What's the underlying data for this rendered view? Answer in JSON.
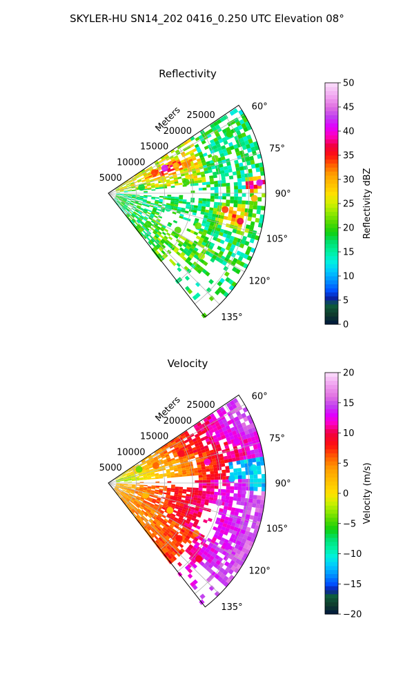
{
  "figure": {
    "suptitle": "SKYLER-HU  SN14_202  0416_0.250 UTC Elevation 08°"
  },
  "chart_data": [
    {
      "type": "heatmap",
      "title": "Reflectivity",
      "projection": "polar-sector",
      "radial_label": "Meters",
      "radial_ticks": [
        5000,
        10000,
        15000,
        20000,
        25000
      ],
      "radial_tick_labels": [
        "5000",
        "10000",
        "15000",
        "20000",
        "25000"
      ],
      "rmax": 28000,
      "angle_range_deg": [
        56,
        142
      ],
      "angle_ticks": [
        60,
        75,
        90,
        105,
        120,
        135
      ],
      "angle_tick_labels": [
        "60°",
        "75°",
        "90°",
        "105°",
        "120°",
        "135°"
      ],
      "grid": true,
      "colorbar": {
        "label": "Reflectivity dBZ",
        "range": [
          0,
          50
        ],
        "ticks": [
          0,
          5,
          10,
          15,
          20,
          25,
          30,
          35,
          40,
          45,
          50
        ],
        "tick_labels": [
          "0",
          "5",
          "10",
          "15",
          "20",
          "25",
          "30",
          "35",
          "40",
          "45",
          "50"
        ],
        "stops": [
          {
            "v": 0,
            "c": "#00163f"
          },
          {
            "v": 2,
            "c": "#0f3b2b"
          },
          {
            "v": 4,
            "c": "#0d5c3c"
          },
          {
            "v": 5.5,
            "c": "#0a1fa8"
          },
          {
            "v": 7,
            "c": "#0050ff"
          },
          {
            "v": 9,
            "c": "#0090ff"
          },
          {
            "v": 11,
            "c": "#00c8ff"
          },
          {
            "v": 13,
            "c": "#00f0e0"
          },
          {
            "v": 15,
            "c": "#00f0a0"
          },
          {
            "v": 17,
            "c": "#00e070"
          },
          {
            "v": 19,
            "c": "#10d010"
          },
          {
            "v": 21,
            "c": "#50d800"
          },
          {
            "v": 23,
            "c": "#90e800"
          },
          {
            "v": 25,
            "c": "#d0f000"
          },
          {
            "v": 27,
            "c": "#ffe000"
          },
          {
            "v": 29,
            "c": "#ffc000"
          },
          {
            "v": 31,
            "c": "#ffa000"
          },
          {
            "v": 33,
            "c": "#ff6000"
          },
          {
            "v": 35,
            "c": "#ff1010"
          },
          {
            "v": 37,
            "c": "#f00040"
          },
          {
            "v": 39,
            "c": "#ff00c0"
          },
          {
            "v": 41,
            "c": "#e000ff"
          },
          {
            "v": 43,
            "c": "#c040f0"
          },
          {
            "v": 45,
            "c": "#e070e0"
          },
          {
            "v": 47,
            "c": "#f0a0f0"
          },
          {
            "v": 50,
            "c": "#fbe0fb"
          }
        ]
      },
      "cells": [
        {
          "az": 66,
          "r": 9000,
          "dbz": 34
        },
        {
          "az": 66,
          "r": 11000,
          "dbz": 42
        },
        {
          "az": 68,
          "r": 13000,
          "dbz": 30
        },
        {
          "az": 70,
          "r": 15000,
          "dbz": 32
        },
        {
          "az": 72,
          "r": 20000,
          "dbz": 22
        },
        {
          "az": 64,
          "r": 24000,
          "dbz": 20
        },
        {
          "az": 76,
          "r": 10000,
          "dbz": 26
        },
        {
          "az": 80,
          "r": 6000,
          "dbz": 18
        },
        {
          "az": 82,
          "r": 14000,
          "dbz": 20
        },
        {
          "az": 86,
          "r": 27000,
          "dbz": 42
        },
        {
          "az": 92,
          "r": 26000,
          "dbz": 30
        },
        {
          "az": 98,
          "r": 21000,
          "dbz": 34
        },
        {
          "az": 102,
          "r": 24000,
          "dbz": 37
        },
        {
          "az": 104,
          "r": 11000,
          "dbz": 16
        },
        {
          "az": 110,
          "r": 17000,
          "dbz": 22
        },
        {
          "az": 118,
          "r": 14000,
          "dbz": 21
        },
        {
          "az": 124,
          "r": 20000,
          "dbz": 24
        },
        {
          "az": 128,
          "r": 9000,
          "dbz": 20
        }
      ]
    },
    {
      "type": "heatmap",
      "title": "Velocity",
      "projection": "polar-sector",
      "radial_label": "Meters",
      "radial_ticks": [
        5000,
        10000,
        15000,
        20000,
        25000
      ],
      "radial_tick_labels": [
        "5000",
        "10000",
        "15000",
        "20000",
        "25000"
      ],
      "rmax": 28000,
      "angle_range_deg": [
        56,
        142
      ],
      "angle_ticks": [
        60,
        75,
        90,
        105,
        120,
        135
      ],
      "angle_tick_labels": [
        "60°",
        "75°",
        "90°",
        "105°",
        "120°",
        "135°"
      ],
      "grid": true,
      "colorbar": {
        "label": "Velocity (m/s)",
        "range": [
          -20,
          20
        ],
        "ticks": [
          -20,
          -15,
          -10,
          -5,
          0,
          5,
          10,
          15,
          20
        ],
        "tick_labels": [
          "−20",
          "−15",
          "−10",
          "−5",
          "0",
          "5",
          "10",
          "15",
          "20"
        ],
        "stops": [
          {
            "v": -20,
            "c": "#00163f"
          },
          {
            "v": -18.5,
            "c": "#0f3b2b"
          },
          {
            "v": -17,
            "c": "#0d5c3c"
          },
          {
            "v": -16,
            "c": "#0a1fa8"
          },
          {
            "v": -15,
            "c": "#0050ff"
          },
          {
            "v": -13.5,
            "c": "#0090ff"
          },
          {
            "v": -12,
            "c": "#00c8ff"
          },
          {
            "v": -10.5,
            "c": "#00f0e0"
          },
          {
            "v": -9,
            "c": "#00f0a0"
          },
          {
            "v": -7.5,
            "c": "#00e070"
          },
          {
            "v": -6,
            "c": "#10d010"
          },
          {
            "v": -4.5,
            "c": "#50d800"
          },
          {
            "v": -3,
            "c": "#90e800"
          },
          {
            "v": -1.5,
            "c": "#d0f000"
          },
          {
            "v": 0,
            "c": "#ffe000"
          },
          {
            "v": 2,
            "c": "#ffc000"
          },
          {
            "v": 4,
            "c": "#ffa000"
          },
          {
            "v": 6,
            "c": "#ff6000"
          },
          {
            "v": 8,
            "c": "#ff1010"
          },
          {
            "v": 10,
            "c": "#f00040"
          },
          {
            "v": 11.5,
            "c": "#ff00c0"
          },
          {
            "v": 13,
            "c": "#e000ff"
          },
          {
            "v": 14.5,
            "c": "#c040f0"
          },
          {
            "v": 16,
            "c": "#e070e0"
          },
          {
            "v": 18,
            "c": "#f0a0f0"
          },
          {
            "v": 20,
            "c": "#fbe0fb"
          }
        ]
      },
      "cells": [
        {
          "az": 66,
          "r": 6000,
          "v": -4
        },
        {
          "az": 70,
          "r": 9000,
          "v": 6
        },
        {
          "az": 68,
          "r": 14000,
          "v": 9
        },
        {
          "az": 64,
          "r": 20000,
          "v": 12
        },
        {
          "az": 72,
          "r": 24000,
          "v": 13
        },
        {
          "az": 78,
          "r": 18000,
          "v": 12
        },
        {
          "az": 84,
          "r": 26000,
          "v": -11
        },
        {
          "az": 88,
          "r": 22000,
          "v": -12
        },
        {
          "az": 94,
          "r": 24000,
          "v": 14
        },
        {
          "az": 100,
          "r": 20000,
          "v": 15
        },
        {
          "az": 104,
          "r": 12000,
          "v": 9
        },
        {
          "az": 108,
          "r": 7000,
          "v": 2
        },
        {
          "az": 114,
          "r": 12000,
          "v": 1
        },
        {
          "az": 120,
          "r": 18000,
          "v": 5
        },
        {
          "az": 128,
          "r": 16000,
          "v": 8
        },
        {
          "az": 118,
          "r": 24000,
          "v": 13
        },
        {
          "az": 130,
          "r": 21000,
          "v": 9
        }
      ]
    }
  ]
}
